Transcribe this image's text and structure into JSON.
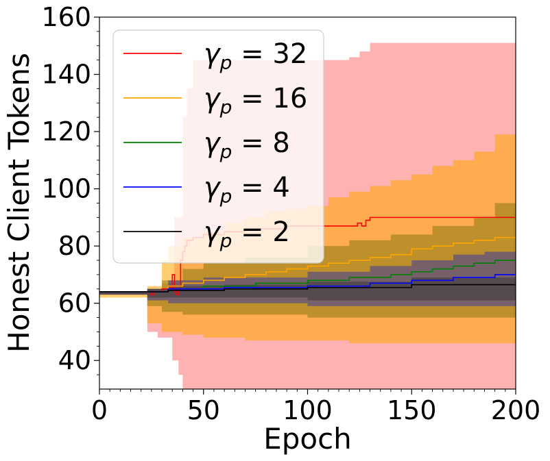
{
  "chart_data": {
    "type": "line",
    "title": "",
    "xlabel": "Epoch",
    "ylabel": "Honest Client Tokens",
    "xlim": [
      0,
      200
    ],
    "ylim": [
      30,
      160
    ],
    "xticks": [
      0,
      50,
      100,
      150,
      200
    ],
    "yticks": [
      40,
      60,
      80,
      100,
      120,
      140,
      160
    ],
    "x_minor_step": 5,
    "y_minor_step": 5,
    "grid": false,
    "legend_position": "upper-left",
    "series": [
      {
        "name": "γp = 32",
        "legend_label": {
          "sym": "γ",
          "sub": "p",
          "rest": " = 32"
        },
        "color": "#ff0000",
        "band_color": "#ff0000",
        "band_opacity": 0.3,
        "mean": [
          [
            0,
            64
          ],
          [
            23,
            64
          ],
          [
            25,
            63
          ],
          [
            26,
            64
          ],
          [
            30,
            65
          ],
          [
            33,
            66
          ],
          [
            34,
            65
          ],
          [
            35,
            70
          ],
          [
            36,
            64
          ],
          [
            37,
            63
          ],
          [
            38,
            65
          ],
          [
            39,
            75
          ],
          [
            40,
            78
          ],
          [
            41,
            80
          ],
          [
            42,
            82
          ],
          [
            45,
            83
          ],
          [
            50,
            84
          ],
          [
            60,
            85
          ],
          [
            70,
            86
          ],
          [
            80,
            86
          ],
          [
            90,
            87
          ],
          [
            100,
            87
          ],
          [
            110,
            87
          ],
          [
            120,
            87
          ],
          [
            124,
            88
          ],
          [
            126,
            87
          ],
          [
            128,
            89
          ],
          [
            130,
            90
          ],
          [
            150,
            90
          ],
          [
            200,
            90
          ]
        ],
        "upper": [
          [
            0,
            64
          ],
          [
            23,
            65
          ],
          [
            30,
            67
          ],
          [
            36,
            90
          ],
          [
            40,
            125
          ],
          [
            42,
            135
          ],
          [
            45,
            145
          ],
          [
            50,
            145
          ],
          [
            75,
            145
          ],
          [
            100,
            145
          ],
          [
            120,
            146
          ],
          [
            125,
            148
          ],
          [
            130,
            151
          ],
          [
            150,
            151
          ],
          [
            200,
            151
          ]
        ],
        "lower": [
          [
            0,
            64
          ],
          [
            23,
            63
          ],
          [
            28,
            50
          ],
          [
            35,
            48
          ],
          [
            38,
            40
          ],
          [
            40,
            35
          ],
          [
            45,
            30
          ],
          [
            50,
            30
          ],
          [
            100,
            30
          ],
          [
            150,
            30
          ],
          [
            200,
            30
          ]
        ]
      },
      {
        "name": "γp = 16",
        "legend_label": {
          "sym": "γ",
          "sub": "p",
          "rest": " = 16"
        },
        "color": "#ffa500",
        "band_color": "#ffa500",
        "band_opacity": 0.55,
        "mean": [
          [
            0,
            64
          ],
          [
            23,
            64
          ],
          [
            33,
            66
          ],
          [
            40,
            67
          ],
          [
            50,
            68
          ],
          [
            60,
            69
          ],
          [
            70,
            70
          ],
          [
            80,
            71
          ],
          [
            90,
            72
          ],
          [
            100,
            73
          ],
          [
            110,
            74
          ],
          [
            120,
            75
          ],
          [
            130,
            76
          ],
          [
            140,
            77
          ],
          [
            150,
            79
          ],
          [
            160,
            80
          ],
          [
            170,
            81
          ],
          [
            180,
            82
          ],
          [
            190,
            83
          ],
          [
            200,
            83
          ]
        ],
        "upper": [
          [
            0,
            64
          ],
          [
            23,
            66
          ],
          [
            30,
            75
          ],
          [
            33,
            80
          ],
          [
            40,
            83
          ],
          [
            50,
            85
          ],
          [
            60,
            88
          ],
          [
            70,
            90
          ],
          [
            80,
            92
          ],
          [
            90,
            93
          ],
          [
            100,
            94
          ],
          [
            110,
            97
          ],
          [
            120,
            99
          ],
          [
            130,
            101
          ],
          [
            140,
            103
          ],
          [
            150,
            105
          ],
          [
            160,
            108
          ],
          [
            170,
            110
          ],
          [
            180,
            113
          ],
          [
            190,
            119
          ],
          [
            200,
            119
          ]
        ],
        "lower": [
          [
            0,
            64
          ],
          [
            23,
            62
          ],
          [
            30,
            53
          ],
          [
            40,
            50
          ],
          [
            50,
            49
          ],
          [
            60,
            48
          ],
          [
            70,
            48
          ],
          [
            80,
            47
          ],
          [
            90,
            47
          ],
          [
            100,
            47
          ],
          [
            120,
            47
          ],
          [
            150,
            46
          ],
          [
            200,
            46
          ]
        ]
      },
      {
        "name": "γp = 8",
        "legend_label": {
          "sym": "γ",
          "sub": "p",
          "rest": " = 8"
        },
        "color": "#008000",
        "band_color": "#6e6e00",
        "band_opacity": 0.45,
        "mean": [
          [
            0,
            64
          ],
          [
            23,
            64
          ],
          [
            33,
            65
          ],
          [
            50,
            66
          ],
          [
            75,
            67
          ],
          [
            100,
            68
          ],
          [
            120,
            69
          ],
          [
            140,
            70
          ],
          [
            150,
            71
          ],
          [
            160,
            72
          ],
          [
            170,
            73
          ],
          [
            180,
            74
          ],
          [
            190,
            75
          ],
          [
            200,
            76
          ]
        ],
        "upper": [
          [
            0,
            64
          ],
          [
            23,
            65
          ],
          [
            30,
            68
          ],
          [
            40,
            72
          ],
          [
            50,
            74
          ],
          [
            70,
            76
          ],
          [
            100,
            80
          ],
          [
            120,
            82
          ],
          [
            140,
            84
          ],
          [
            160,
            87
          ],
          [
            180,
            90
          ],
          [
            190,
            95
          ],
          [
            200,
            98
          ]
        ],
        "lower": [
          [
            0,
            64
          ],
          [
            23,
            63
          ],
          [
            30,
            59
          ],
          [
            40,
            57
          ],
          [
            60,
            56
          ],
          [
            80,
            56
          ],
          [
            100,
            56
          ],
          [
            150,
            55
          ],
          [
            200,
            55
          ]
        ]
      },
      {
        "name": "γp = 4",
        "legend_label": {
          "sym": "γ",
          "sub": "p",
          "rest": " = 4"
        },
        "color": "#0000ff",
        "band_color": "#3a3aa0",
        "band_opacity": 0.55,
        "mean": [
          [
            0,
            64
          ],
          [
            23,
            64
          ],
          [
            33,
            65
          ],
          [
            60,
            65.5
          ],
          [
            100,
            66
          ],
          [
            130,
            67
          ],
          [
            150,
            68
          ],
          [
            170,
            69
          ],
          [
            190,
            70
          ],
          [
            200,
            70
          ]
        ],
        "upper": [
          [
            0,
            64
          ],
          [
            23,
            65
          ],
          [
            33,
            68
          ],
          [
            50,
            69
          ],
          [
            100,
            71
          ],
          [
            130,
            73
          ],
          [
            150,
            75
          ],
          [
            170,
            77
          ],
          [
            185,
            78
          ],
          [
            200,
            80
          ]
        ],
        "lower": [
          [
            0,
            64
          ],
          [
            23,
            63
          ],
          [
            33,
            61
          ],
          [
            60,
            60
          ],
          [
            100,
            60
          ],
          [
            150,
            59
          ],
          [
            200,
            59
          ]
        ]
      },
      {
        "name": "γp = 2",
        "legend_label": {
          "sym": "γ",
          "sub": "p",
          "rest": " = 2"
        },
        "color": "#000000",
        "band_color": "#333333",
        "band_opacity": 0.5,
        "mean": [
          [
            0,
            64
          ],
          [
            23,
            64
          ],
          [
            33,
            64.5
          ],
          [
            60,
            65
          ],
          [
            100,
            65.5
          ],
          [
            150,
            66.5
          ],
          [
            200,
            67
          ]
        ],
        "upper": [
          [
            0,
            64
          ],
          [
            23,
            65
          ],
          [
            33,
            66
          ],
          [
            60,
            66.5
          ],
          [
            100,
            67.5
          ],
          [
            150,
            69
          ],
          [
            200,
            71
          ]
        ],
        "lower": [
          [
            0,
            64
          ],
          [
            23,
            63
          ],
          [
            33,
            62
          ],
          [
            60,
            62
          ],
          [
            100,
            62
          ],
          [
            150,
            61
          ],
          [
            200,
            61
          ]
        ]
      }
    ]
  }
}
